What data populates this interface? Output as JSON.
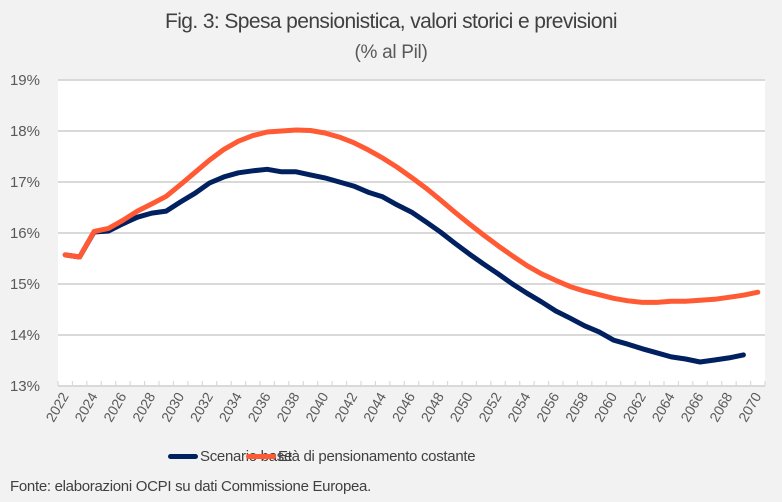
{
  "chart_data": {
    "type": "line",
    "title": "Fig. 3: Spesa pensionistica, valori storici e previsioni",
    "subtitle": "(% al Pil)",
    "xlabel": "",
    "ylabel": "",
    "ylim": [
      13,
      19
    ],
    "yticks": [
      "13%",
      "14%",
      "15%",
      "16%",
      "17%",
      "18%",
      "19%"
    ],
    "ytick_values": [
      13,
      14,
      15,
      16,
      17,
      18,
      19
    ],
    "xticks": [
      "2022",
      "2024",
      "2026",
      "2028",
      "2030",
      "2032",
      "2034",
      "2036",
      "2038",
      "2040",
      "2042",
      "2044",
      "2046",
      "2048",
      "2050",
      "2052",
      "2054",
      "2056",
      "2058",
      "2060",
      "2062",
      "2064",
      "2066",
      "2068",
      "2070"
    ],
    "x": [
      2022,
      2023,
      2024,
      2025,
      2026,
      2027,
      2028,
      2029,
      2030,
      2031,
      2032,
      2033,
      2034,
      2035,
      2036,
      2037,
      2038,
      2039,
      2040,
      2041,
      2042,
      2043,
      2044,
      2045,
      2046,
      2047,
      2048,
      2049,
      2050,
      2051,
      2052,
      2053,
      2054,
      2055,
      2056,
      2057,
      2058,
      2059,
      2060,
      2061,
      2062,
      2063,
      2064,
      2065,
      2066,
      2067,
      2068,
      2069,
      2070
    ],
    "grid": true,
    "legend_position": "bottom",
    "series": [
      {
        "name": "Scenario base",
        "color": "#002060",
        "values": [
          15.57,
          15.53,
          16.02,
          16.04,
          16.18,
          16.31,
          16.39,
          16.43,
          16.61,
          16.78,
          16.98,
          17.1,
          17.18,
          17.22,
          17.25,
          17.2,
          17.2,
          17.14,
          17.08,
          17.0,
          16.92,
          16.8,
          16.71,
          16.55,
          16.41,
          16.22,
          16.02,
          15.8,
          15.59,
          15.39,
          15.2,
          15.0,
          14.82,
          14.65,
          14.47,
          14.33,
          14.18,
          14.06,
          13.9,
          13.82,
          13.73,
          13.65,
          13.57,
          13.53,
          13.47,
          13.51,
          13.55,
          13.61,
          13.63
        ]
      },
      {
        "name": "Età di pensionamento costante",
        "color": "#ff5a33",
        "values": [
          15.57,
          15.53,
          16.03,
          16.09,
          16.25,
          16.43,
          16.57,
          16.72,
          16.95,
          17.19,
          17.43,
          17.64,
          17.8,
          17.91,
          17.98,
          18.0,
          18.02,
          18.01,
          17.96,
          17.88,
          17.77,
          17.63,
          17.47,
          17.29,
          17.09,
          16.88,
          16.65,
          16.41,
          16.18,
          15.96,
          15.75,
          15.55,
          15.36,
          15.2,
          15.07,
          14.95,
          14.86,
          14.79,
          14.72,
          14.67,
          14.64,
          14.64,
          14.66,
          14.66,
          14.68,
          14.7,
          14.74,
          14.78,
          14.84
        ]
      }
    ],
    "source": "Fonte: elaborazioni OCPI su dati Commissione Europea."
  }
}
